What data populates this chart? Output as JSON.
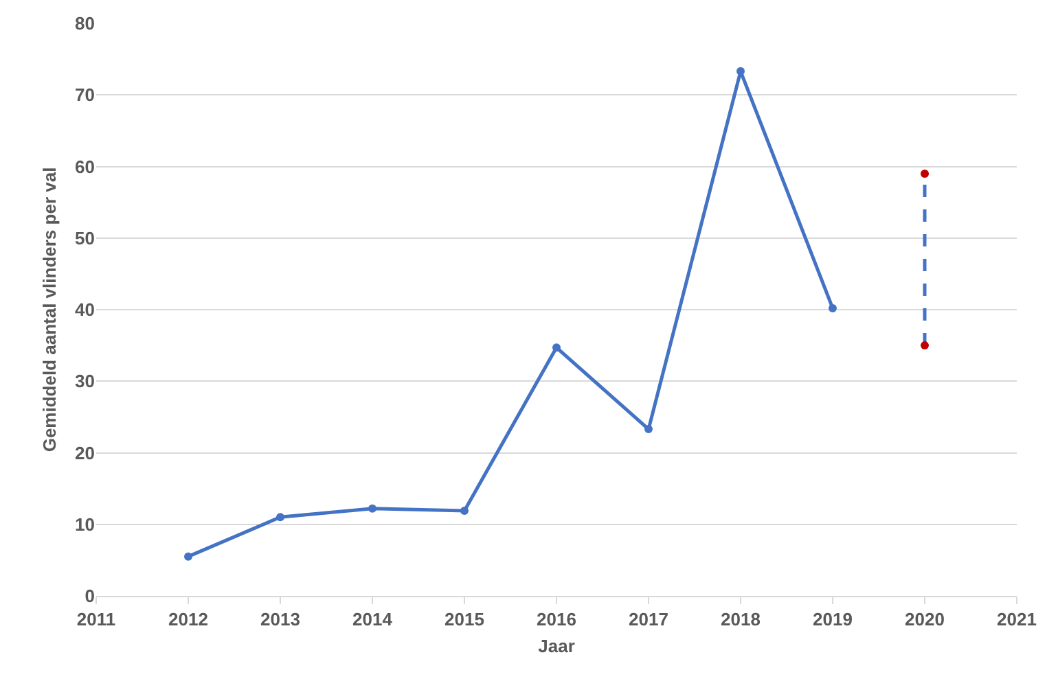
{
  "chart_data": {
    "type": "line",
    "xlabel": "Jaar",
    "ylabel": "Gemiddeld aantal vlinders per val",
    "xlim": [
      2011,
      2021
    ],
    "xticks": [
      2011,
      2012,
      2013,
      2014,
      2015,
      2016,
      2017,
      2018,
      2019,
      2020,
      2021
    ],
    "ylim": [
      0,
      80
    ],
    "yticks": [
      0,
      10,
      20,
      30,
      40,
      50,
      60,
      70,
      80
    ],
    "grid": "y",
    "marker": "circle",
    "series": [
      {
        "color": "#4472c4",
        "x": [
          2012,
          2013,
          2014,
          2015,
          2016,
          2017,
          2018,
          2019
        ],
        "values": [
          5.5,
          11,
          12.2,
          11.9,
          34.7,
          23.3,
          73.3,
          40.2
        ]
      },
      {
        "color": "#4472c4",
        "line_style": "dashed",
        "colors": [
          "#c00000",
          "#c00000"
        ],
        "x": [
          2020,
          2020
        ],
        "values": [
          35,
          59
        ]
      }
    ]
  }
}
